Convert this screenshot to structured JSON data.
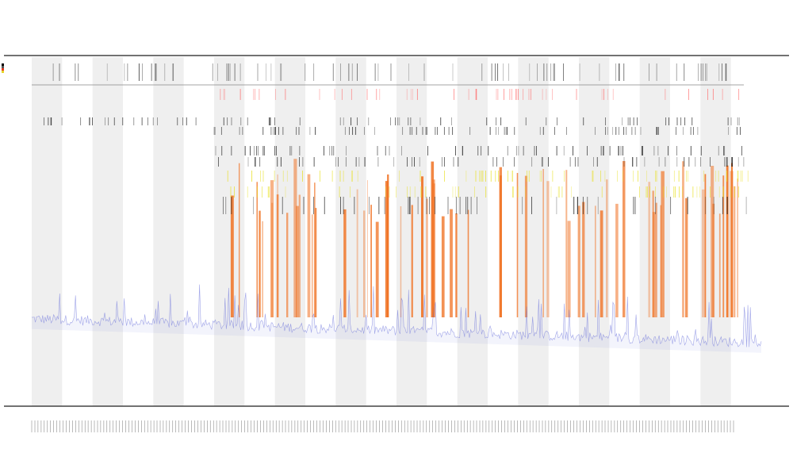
{
  "chart_data": {
    "type": "area",
    "title": "",
    "subtitle_1": "",
    "subtitle_2": "",
    "xlabel": "",
    "ylabel": "",
    "legend": {
      "placement": "left",
      "entries": [
        {
          "name": "",
          "color": "#000000"
        },
        {
          "name": "",
          "color": "#555555"
        },
        {
          "name": "",
          "color": "#e83a1c"
        },
        {
          "name": "",
          "color": "#e6d52a"
        }
      ]
    },
    "colors": {
      "baseline_series": "#5b63d9",
      "peak_fill": "#f07020",
      "peak_marker_dark": "#111111",
      "peak_marker_yellow": "#e8e020",
      "peak_marker_red": "#ff6b6b",
      "band_shade": "#efefef",
      "axis": "#444444"
    },
    "grid": false,
    "x": {
      "count": 240,
      "tick_labels_rotated": true
    },
    "y": {
      "range": [
        0,
        1
      ]
    },
    "shaded_bands": 12,
    "baseline": {
      "description_level_start": 0.24,
      "description_level_end": 0.17
    }
  }
}
